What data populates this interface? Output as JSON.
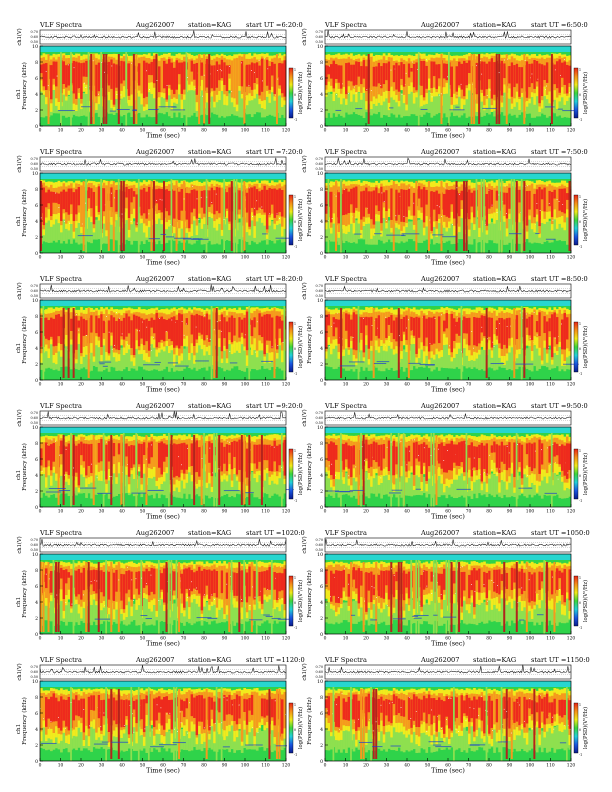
{
  "page": {
    "background": "#ffffff",
    "title_prefix": "VLF Spectra",
    "colorbar_label": "log(PSD)(V²/Hz)",
    "colorbar_tick_labels": [
      "1",
      "0",
      "-1"
    ]
  },
  "chart_data": [
    {
      "type": "heatmap",
      "title": "VLF Spectra",
      "date": "Aug262007",
      "station": "station=KAG",
      "start": "start UT =6:20:0",
      "top_ylabel": "ch1(V)",
      "top_yticks": [
        "0.70",
        "0.60",
        "0.50"
      ],
      "ylabel": "Frequency (kHz)",
      "ylabel_prefix": "ch1",
      "yticks": [
        "10",
        "8",
        "6",
        "4",
        "2",
        "0"
      ],
      "xlabel": "Time (sec)",
      "xticks": [
        "0",
        "10",
        "20",
        "30",
        "40",
        "50",
        "60",
        "70",
        "80",
        "90",
        "100",
        "110",
        "120"
      ],
      "xlim": [
        0,
        120
      ],
      "ylim": [
        0,
        10
      ]
    },
    {
      "type": "heatmap",
      "title": "VLF Spectra",
      "date": "Aug262007",
      "station": "station=KAG",
      "start": "start UT =6:50:0",
      "top_ylabel": "ch1(V)",
      "top_yticks": [
        "0.70",
        "0.60",
        "0.50"
      ],
      "ylabel": "Frequency (kHz)",
      "ylabel_prefix": "",
      "yticks": [
        "10",
        "8",
        "6",
        "4",
        "2",
        "0"
      ],
      "xlabel": "Time (sec)",
      "xticks": [
        "0",
        "10",
        "20",
        "30",
        "40",
        "50",
        "60",
        "70",
        "80",
        "90",
        "100",
        "110",
        "120"
      ],
      "xlim": [
        0,
        120
      ],
      "ylim": [
        0,
        10
      ]
    },
    {
      "type": "heatmap",
      "title": "VLF Spectra",
      "date": "Aug262007",
      "station": "station=KAG",
      "start": "start UT =7:20:0",
      "top_ylabel": "ch1(V)",
      "top_yticks": [
        "0.70",
        "0.60",
        "0.50"
      ],
      "ylabel": "Frequency (kHz)",
      "ylabel_prefix": "ch1",
      "yticks": [
        "10",
        "8",
        "6",
        "4",
        "2",
        "0"
      ],
      "xlabel": "Time (sec)",
      "xticks": [
        "0",
        "10",
        "20",
        "30",
        "40",
        "50",
        "60",
        "70",
        "80",
        "90",
        "100",
        "110",
        "120"
      ],
      "xlim": [
        0,
        120
      ],
      "ylim": [
        0,
        10
      ]
    },
    {
      "type": "heatmap",
      "title": "VLF Spectra",
      "date": "Aug262007",
      "station": "station=KAG",
      "start": "start UT =7:50:0",
      "top_ylabel": "ch1(V)",
      "top_yticks": [
        "0.70",
        "0.60",
        "0.50"
      ],
      "ylabel": "Frequency (kHz)",
      "ylabel_prefix": "",
      "yticks": [
        "10",
        "8",
        "6",
        "4",
        "2",
        "0"
      ],
      "xlabel": "Time (sec)",
      "xticks": [
        "0",
        "10",
        "20",
        "30",
        "40",
        "50",
        "60",
        "70",
        "80",
        "90",
        "100",
        "110",
        "120"
      ],
      "xlim": [
        0,
        120
      ],
      "ylim": [
        0,
        10
      ]
    },
    {
      "type": "heatmap",
      "title": "VLF Spectra",
      "date": "Aug262007",
      "station": "station=KAG",
      "start": "start UT =8:20:0",
      "top_ylabel": "ch1(V)",
      "top_yticks": [
        "0.70",
        "0.60",
        "0.50"
      ],
      "ylabel": "Frequency (kHz)",
      "ylabel_prefix": "ch1",
      "yticks": [
        "10",
        "8",
        "6",
        "4",
        "2",
        "0"
      ],
      "xlabel": "Time (sec)",
      "xticks": [
        "0",
        "10",
        "20",
        "30",
        "40",
        "50",
        "60",
        "70",
        "80",
        "90",
        "100",
        "110",
        "120"
      ],
      "xlim": [
        0,
        120
      ],
      "ylim": [
        0,
        10
      ]
    },
    {
      "type": "heatmap",
      "title": "VLF Spectra",
      "date": "Aug262007",
      "station": "station=KAG",
      "start": "start UT =8:50:0",
      "top_ylabel": "ch1(V)",
      "top_yticks": [
        "0.70",
        "0.60",
        "0.50"
      ],
      "ylabel": "Frequency (kHz)",
      "ylabel_prefix": "",
      "yticks": [
        "10",
        "8",
        "6",
        "4",
        "2",
        "0"
      ],
      "xlabel": "Time (sec)",
      "xticks": [
        "0",
        "10",
        "20",
        "30",
        "40",
        "50",
        "60",
        "70",
        "80",
        "90",
        "100",
        "110",
        "120"
      ],
      "xlim": [
        0,
        120
      ],
      "ylim": [
        0,
        10
      ]
    },
    {
      "type": "heatmap",
      "title": "VLF Spectra",
      "date": "Aug262007",
      "station": "station=KAG",
      "start": "start UT =9:20:0",
      "top_ylabel": "ch1(V)",
      "top_yticks": [
        "0.70",
        "0.60",
        "0.50"
      ],
      "ylabel": "Frequency (kHz)",
      "ylabel_prefix": "ch1",
      "yticks": [
        "10",
        "8",
        "6",
        "4",
        "2",
        "0"
      ],
      "xlabel": "Time (sec)",
      "xticks": [
        "0",
        "10",
        "20",
        "30",
        "40",
        "50",
        "60",
        "70",
        "80",
        "90",
        "100",
        "110",
        "120"
      ],
      "xlim": [
        0,
        120
      ],
      "ylim": [
        0,
        10
      ]
    },
    {
      "type": "heatmap",
      "title": "VLF Spectra",
      "date": "Aug262007",
      "station": "station=KAG",
      "start": "start UT =9:50:0",
      "top_ylabel": "ch1(V)",
      "top_yticks": [
        "0.70",
        "0.60",
        "0.50"
      ],
      "ylabel": "Frequency (kHz)",
      "ylabel_prefix": "",
      "yticks": [
        "10",
        "8",
        "6",
        "4",
        "2",
        "0"
      ],
      "xlabel": "Time (sec)",
      "xticks": [
        "0",
        "10",
        "20",
        "30",
        "40",
        "50",
        "60",
        "70",
        "80",
        "90",
        "100",
        "110",
        "120"
      ],
      "xlim": [
        0,
        120
      ],
      "ylim": [
        0,
        10
      ]
    },
    {
      "type": "heatmap",
      "title": "VLF Spectra",
      "date": "Aug262007",
      "station": "station=KAG",
      "start": "start UT =1020:0",
      "top_ylabel": "ch1(V)",
      "top_yticks": [
        "0.70",
        "0.60",
        "0.50"
      ],
      "ylabel": "Frequency (kHz)",
      "ylabel_prefix": "ch1",
      "yticks": [
        "10",
        "8",
        "6",
        "4",
        "2",
        "0"
      ],
      "xlabel": "Time (sec)",
      "xticks": [
        "0",
        "10",
        "20",
        "30",
        "40",
        "50",
        "60",
        "70",
        "80",
        "90",
        "100",
        "110",
        "120"
      ],
      "xlim": [
        0,
        120
      ],
      "ylim": [
        0,
        10
      ]
    },
    {
      "type": "heatmap",
      "title": "VLF Spectra",
      "date": "Aug262007",
      "station": "station=KAG",
      "start": "start UT =1050:0",
      "top_ylabel": "ch1(V)",
      "top_yticks": [
        "0.70",
        "0.60",
        "0.50"
      ],
      "ylabel": "Frequency (kHz)",
      "ylabel_prefix": "",
      "yticks": [
        "10",
        "8",
        "6",
        "4",
        "2",
        "0"
      ],
      "xlabel": "Time (sec)",
      "xticks": [
        "0",
        "10",
        "20",
        "30",
        "40",
        "50",
        "60",
        "70",
        "80",
        "90",
        "100",
        "110",
        "120"
      ],
      "xlim": [
        0,
        120
      ],
      "ylim": [
        0,
        10
      ]
    },
    {
      "type": "heatmap",
      "title": "VLF Spectra",
      "date": "Aug262007",
      "station": "station=KAG",
      "start": "start UT =1120:0",
      "top_ylabel": "ch1(V)",
      "top_yticks": [
        "0.70",
        "0.60",
        "0.50"
      ],
      "ylabel": "Frequency (kHz)",
      "ylabel_prefix": "ch1",
      "yticks": [
        "10",
        "8",
        "6",
        "4",
        "2",
        "0"
      ],
      "xlabel": "Time (sec)",
      "xticks": [
        "0",
        "10",
        "20",
        "30",
        "40",
        "50",
        "60",
        "70",
        "80",
        "90",
        "100",
        "110",
        "120"
      ],
      "xlim": [
        0,
        120
      ],
      "ylim": [
        0,
        10
      ]
    },
    {
      "type": "heatmap",
      "title": "VLF Spectra",
      "date": "Aug262007",
      "station": "station=KAG",
      "start": "start UT =1150:0",
      "top_ylabel": "ch1(V)",
      "top_yticks": [
        "0.70",
        "0.60",
        "0.50"
      ],
      "ylabel": "Frequency (kHz)",
      "ylabel_prefix": "",
      "yticks": [
        "10",
        "8",
        "6",
        "4",
        "2",
        "0"
      ],
      "xlabel": "Time (sec)",
      "xticks": [
        "0",
        "10",
        "20",
        "30",
        "40",
        "50",
        "60",
        "70",
        "80",
        "90",
        "100",
        "110",
        "120"
      ],
      "xlim": [
        0,
        120
      ],
      "ylim": [
        0,
        10
      ]
    }
  ],
  "colors": {
    "cyan_band": "#27d6cf",
    "green": "#2fd34a",
    "light_green": "#8ee04f",
    "yellow": "#f2ea1c",
    "orange": "#f59a1d",
    "red": "#ee2a1d",
    "dark_red": "#b3241c",
    "blue": "#1a3fd0",
    "colorbar_stops": [
      "#0a1a8c",
      "#1a55e0",
      "#22d0d8",
      "#3ad43c",
      "#f0ea1a",
      "#f4901a",
      "#e82418"
    ]
  }
}
